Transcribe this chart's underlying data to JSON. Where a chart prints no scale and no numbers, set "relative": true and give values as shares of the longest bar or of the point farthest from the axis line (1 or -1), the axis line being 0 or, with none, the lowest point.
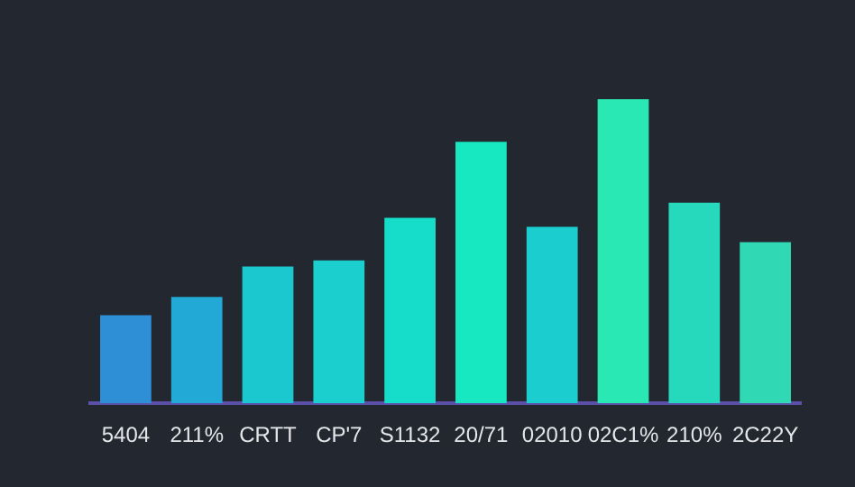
{
  "chart_data": {
    "type": "bar",
    "relative": true,
    "categories": [
      "5404",
      "211%",
      "CRTT",
      "CP'7",
      "S1132",
      "20/71",
      "02010",
      "02C1%",
      "210%",
      "2C22Y"
    ],
    "values": [
      0.29,
      0.35,
      0.45,
      0.47,
      0.61,
      0.86,
      0.58,
      1,
      0.66,
      0.53
    ],
    "colors": [
      "#2e8fd6",
      "#22a9d6",
      "#1cc8cf",
      "#1ccfcf",
      "#16dcca",
      "#18e8c2",
      "#1ccdd0",
      "#2ae8b4",
      "#26d8bc",
      "#30d8b4"
    ],
    "legend": false
  }
}
